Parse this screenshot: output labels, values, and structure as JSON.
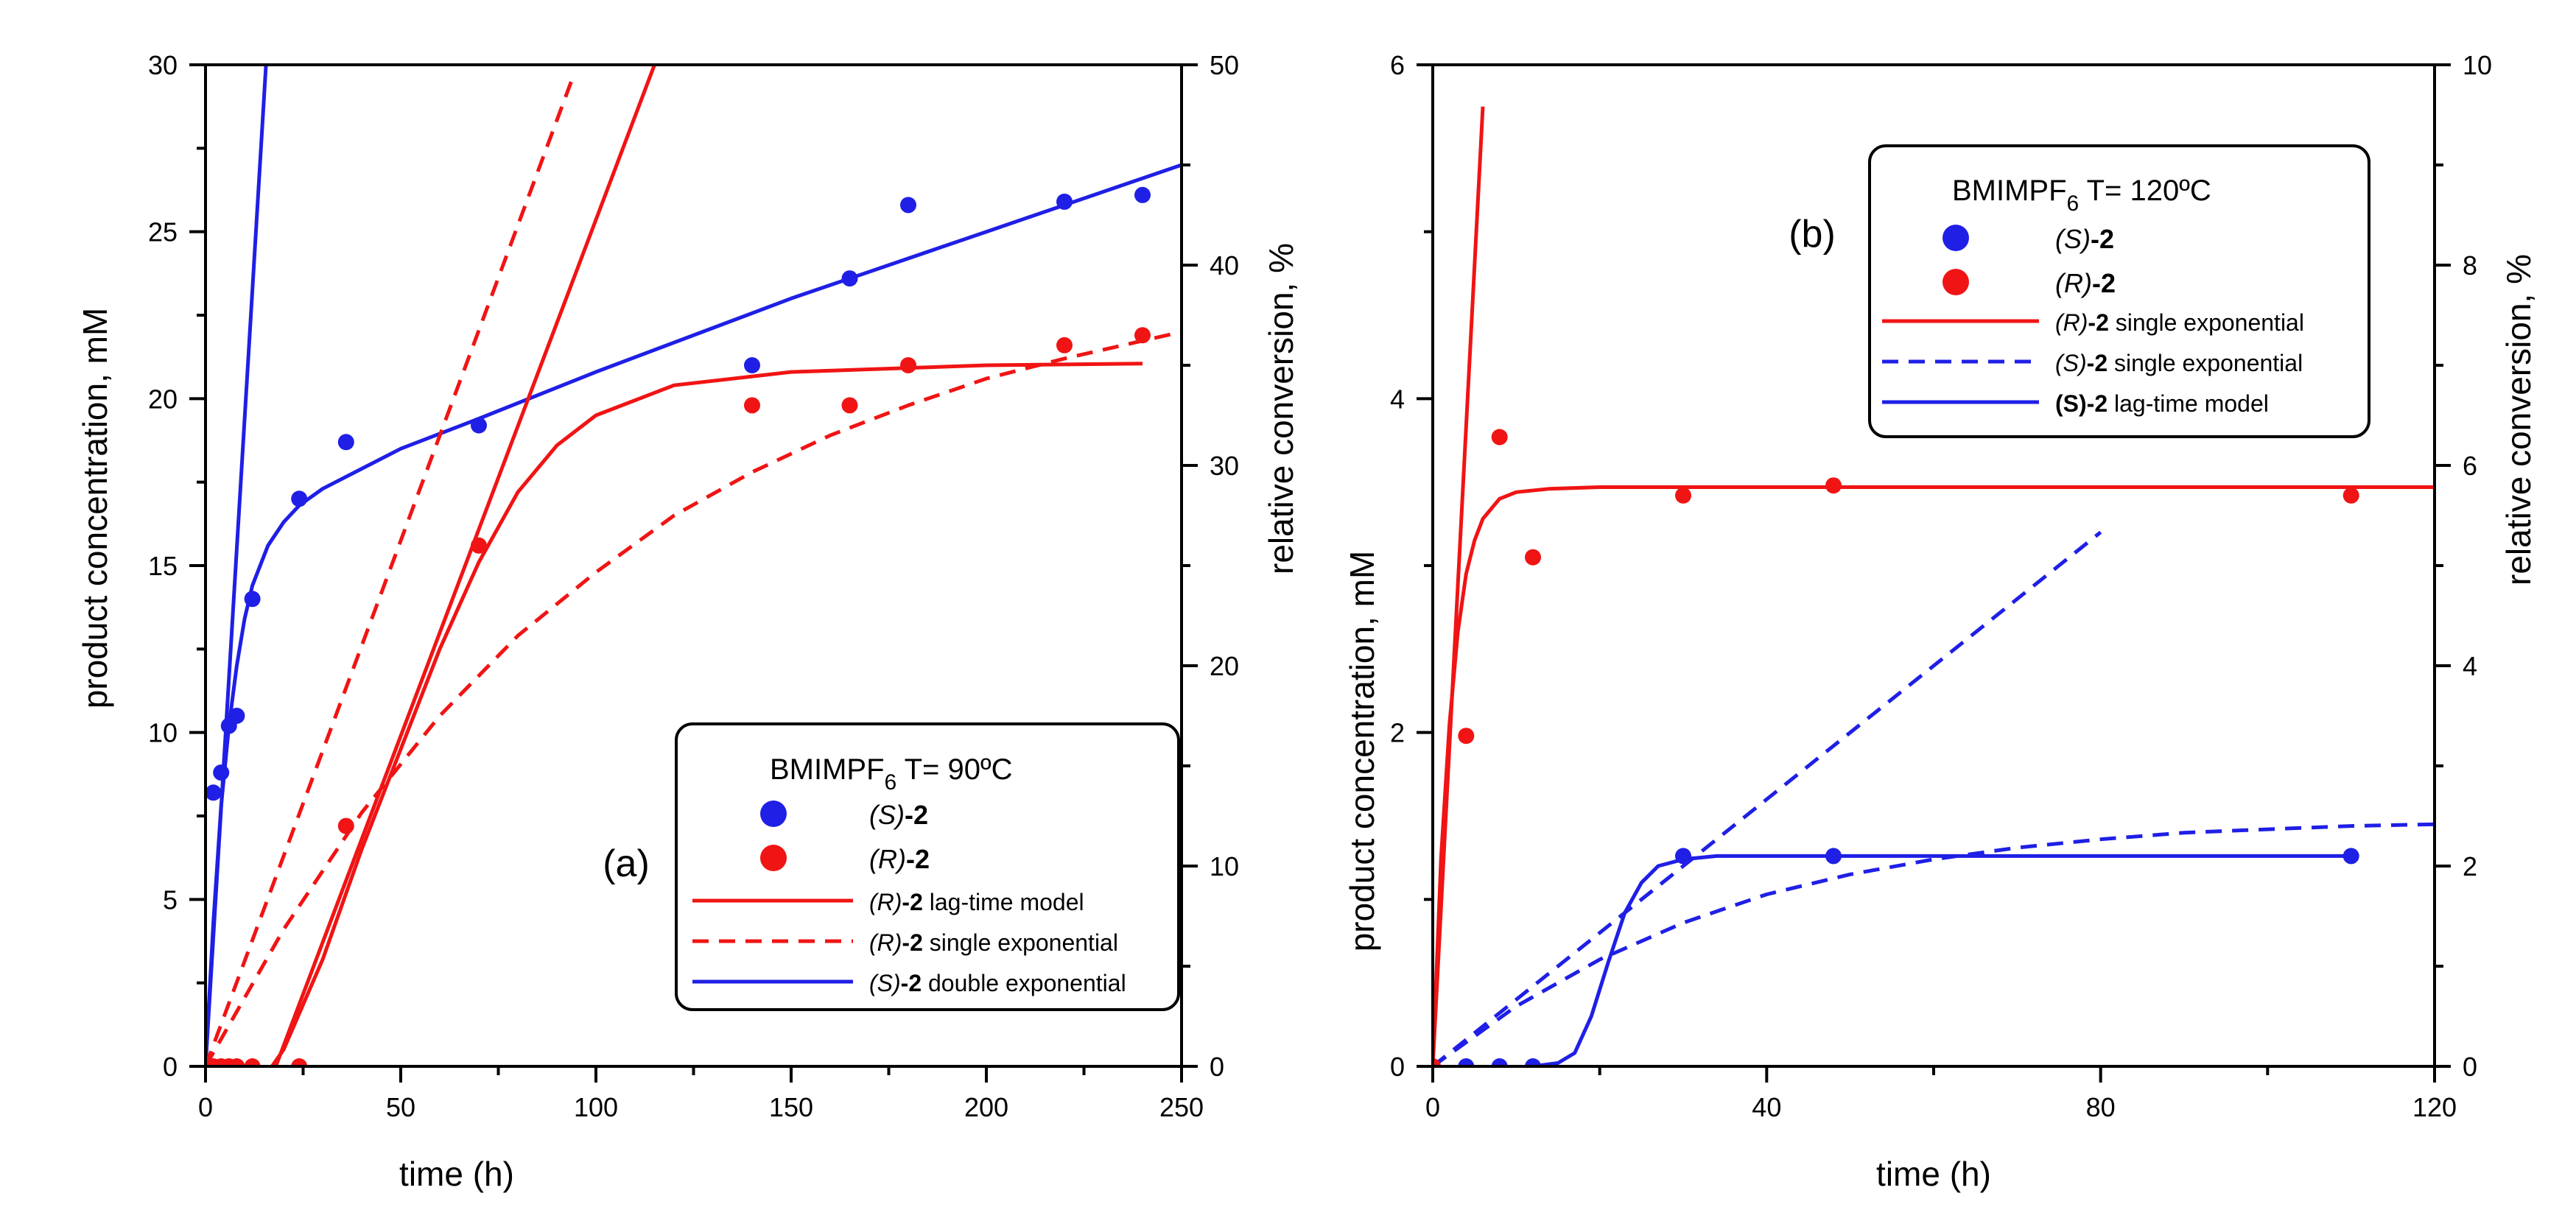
{
  "chart_data": [
    {
      "type": "scatter",
      "panel_label": "(a)",
      "legend_title": {
        "main": "BMIMPF",
        "sub": "6",
        "rest": " T= 90ºC"
      },
      "xlabel": "time (h)",
      "ylabel": "product concentration, mM",
      "y2label": "relative conversion, %",
      "xlim": [
        0,
        250
      ],
      "ylim": [
        0,
        30
      ],
      "y2lim": [
        0,
        50
      ],
      "xticks": [
        "0",
        "50",
        "100",
        "150",
        "200",
        "250"
      ],
      "yticks": [
        "0",
        "5",
        "10",
        "15",
        "20",
        "25",
        "30"
      ],
      "y2ticks": [
        "0",
        "10",
        "20",
        "30",
        "40",
        "50"
      ],
      "grid": false,
      "legend_position": "bottom-right",
      "legend": [
        {
          "italic": "(S)",
          "bold": "-2",
          "rest": "",
          "kind": "marker",
          "color": "#1f1fe6"
        },
        {
          "italic": "(R)",
          "bold": "-2",
          "rest": "",
          "kind": "marker",
          "color": "#f01414"
        },
        {
          "italic": "(R)",
          "bold": "-2",
          "rest": " lag-time model",
          "kind": "solid",
          "color": "#f01414"
        },
        {
          "italic": "(R)",
          "bold": "-2",
          "rest": " single exponential",
          "kind": "dashed",
          "color": "#f01414"
        },
        {
          "italic": "(S)",
          "bold": "-2",
          "rest": " double exponential",
          "kind": "solid",
          "color": "#1f1fe6"
        }
      ],
      "scatter_series": [
        {
          "name": "(S)-2",
          "color": "#1f1fe6",
          "points": [
            [
              0,
              0
            ],
            [
              2,
              8.2
            ],
            [
              4,
              8.8
            ],
            [
              6,
              10.2
            ],
            [
              8,
              10.5
            ],
            [
              12,
              14
            ],
            [
              24,
              17
            ],
            [
              36,
              18.7
            ],
            [
              70,
              19.2
            ],
            [
              140,
              21
            ],
            [
              165,
              23.6
            ],
            [
              180,
              25.8
            ],
            [
              220,
              25.9
            ],
            [
              240,
              26.1
            ]
          ]
        },
        {
          "name": "(R)-2",
          "color": "#f01414",
          "points": [
            [
              0,
              0
            ],
            [
              2,
              0
            ],
            [
              4,
              0
            ],
            [
              6,
              0
            ],
            [
              8,
              0
            ],
            [
              12,
              0
            ],
            [
              24,
              0
            ],
            [
              36,
              7.2
            ],
            [
              70,
              15.6
            ],
            [
              140,
              19.8
            ],
            [
              165,
              19.8
            ],
            [
              180,
              21
            ],
            [
              220,
              21.6
            ],
            [
              240,
              21.9
            ]
          ]
        }
      ],
      "line_series": [
        {
          "name": "(S)-2 double exponential",
          "color": "#1f1fe6",
          "dash": false,
          "points": [
            [
              0,
              0
            ],
            [
              2,
              4.3
            ],
            [
              4,
              7.8
            ],
            [
              6,
              10.2
            ],
            [
              8,
              12
            ],
            [
              10,
              13.4
            ],
            [
              12,
              14.4
            ],
            [
              16,
              15.6
            ],
            [
              20,
              16.3
            ],
            [
              24,
              16.8
            ],
            [
              30,
              17.3
            ],
            [
              40,
              17.9
            ],
            [
              50,
              18.5
            ],
            [
              70,
              19.4
            ],
            [
              100,
              20.8
            ],
            [
              150,
              23
            ],
            [
              200,
              25
            ],
            [
              250,
              27
            ]
          ]
        },
        {
          "name": "(S)-2 initial rate",
          "color": "#1f1fe6",
          "dash": false,
          "points": [
            [
              0,
              0
            ],
            [
              15.5,
              30
            ]
          ]
        },
        {
          "name": "(R)-2 lag-time model",
          "color": "#f01414",
          "dash": false,
          "points": [
            [
              17,
              0
            ],
            [
              20,
              0.5
            ],
            [
              30,
              3.2
            ],
            [
              40,
              6.5
            ],
            [
              50,
              9.5
            ],
            [
              60,
              12.5
            ],
            [
              70,
              15.1
            ],
            [
              80,
              17.2
            ],
            [
              90,
              18.6
            ],
            [
              100,
              19.5
            ],
            [
              120,
              20.4
            ],
            [
              150,
              20.8
            ],
            [
              200,
              21
            ],
            [
              240,
              21.05
            ]
          ]
        },
        {
          "name": "(R)-2 lag-time tangent",
          "color": "#f01414",
          "dash": false,
          "points": [
            [
              18,
              0
            ],
            [
              115,
              30
            ]
          ]
        },
        {
          "name": "(R)-2 single exponential",
          "color": "#f01414",
          "dash": true,
          "points": [
            [
              0,
              0
            ],
            [
              20,
              4.1
            ],
            [
              40,
              7.6
            ],
            [
              60,
              10.5
            ],
            [
              80,
              12.9
            ],
            [
              100,
              14.8
            ],
            [
              120,
              16.5
            ],
            [
              140,
              17.8
            ],
            [
              160,
              18.9
            ],
            [
              180,
              19.8
            ],
            [
              200,
              20.6
            ],
            [
              220,
              21.2
            ],
            [
              250,
              22
            ]
          ]
        },
        {
          "name": "(R)-2 single exponential initial rate",
          "color": "#f01414",
          "dash": true,
          "points": [
            [
              0,
              0
            ],
            [
              94,
              29.6
            ]
          ]
        }
      ]
    },
    {
      "type": "scatter",
      "panel_label": "(b)",
      "legend_title": {
        "main": "BMIMPF",
        "sub": "6",
        "rest": " T= 120ºC"
      },
      "xlabel": "time (h)",
      "ylabel": "product concentration, mM",
      "y2label": "relative conversion, %",
      "xlim": [
        0,
        120
      ],
      "ylim": [
        0,
        6
      ],
      "y2lim": [
        0,
        10
      ],
      "xticks": [
        "0",
        "40",
        "80",
        "120"
      ],
      "yticks": [
        "0",
        "2",
        "4",
        "6"
      ],
      "y2ticks": [
        "0",
        "2",
        "4",
        "6",
        "8",
        "10"
      ],
      "grid": false,
      "legend_position": "top-right",
      "legend": [
        {
          "italic": "(S)",
          "bold": "-2",
          "rest": "",
          "kind": "marker",
          "color": "#1f1fe6"
        },
        {
          "italic": "(R)",
          "bold": "-2",
          "rest": "",
          "kind": "marker",
          "color": "#f01414"
        },
        {
          "italic": "(R)",
          "bold": "-2",
          "rest": " single exponential",
          "kind": "solid",
          "color": "#f01414"
        },
        {
          "italic": "(S)",
          "bold": "-2",
          "rest": " single exponential",
          "kind": "dashed",
          "color": "#1f1fe6"
        },
        {
          "italic": "",
          "bold": "(S)-2",
          "rest": " lag-time model",
          "kind": "solid",
          "color": "#1f1fe6"
        }
      ],
      "scatter_series": [
        {
          "name": "(S)-2",
          "color": "#1f1fe6",
          "points": [
            [
              0,
              0
            ],
            [
              4,
              0
            ],
            [
              8,
              0
            ],
            [
              12,
              0
            ],
            [
              30,
              1.26
            ],
            [
              48,
              1.26
            ],
            [
              110,
              1.26
            ]
          ]
        },
        {
          "name": "(R)-2",
          "color": "#f01414",
          "points": [
            [
              0,
              0
            ],
            [
              4,
              1.98
            ],
            [
              8,
              3.77
            ],
            [
              12,
              3.05
            ],
            [
              30,
              3.42
            ],
            [
              48,
              3.48
            ],
            [
              110,
              3.42
            ]
          ]
        }
      ],
      "line_series": [
        {
          "name": "(R)-2 single exponential",
          "color": "#f01414",
          "dash": false,
          "points": [
            [
              0,
              0
            ],
            [
              1,
              1.25
            ],
            [
              2,
              2.05
            ],
            [
              3,
              2.6
            ],
            [
              4,
              2.95
            ],
            [
              5,
              3.15
            ],
            [
              6,
              3.28
            ],
            [
              8,
              3.4
            ],
            [
              10,
              3.44
            ],
            [
              14,
              3.46
            ],
            [
              20,
              3.47
            ],
            [
              120,
              3.47
            ]
          ]
        },
        {
          "name": "(R)-2 initial rate",
          "color": "#f01414",
          "dash": false,
          "points": [
            [
              0,
              0
            ],
            [
              6,
              5.75
            ]
          ]
        },
        {
          "name": "(S)-2 single exponential",
          "color": "#1f1fe6",
          "dash": true,
          "points": [
            [
              0,
              0
            ],
            [
              10,
              0.36
            ],
            [
              20,
              0.64
            ],
            [
              30,
              0.86
            ],
            [
              40,
              1.03
            ],
            [
              50,
              1.15
            ],
            [
              60,
              1.24
            ],
            [
              70,
              1.31
            ],
            [
              80,
              1.36
            ],
            [
              90,
              1.4
            ],
            [
              100,
              1.42
            ],
            [
              110,
              1.44
            ],
            [
              120,
              1.45
            ]
          ]
        },
        {
          "name": "(S)-2 single exponential initial rate",
          "color": "#1f1fe6",
          "dash": true,
          "points": [
            [
              0,
              0
            ],
            [
              80,
              3.2
            ]
          ]
        },
        {
          "name": "(S)-2 lag-time model",
          "color": "#1f1fe6",
          "dash": false,
          "points": [
            [
              12,
              0
            ],
            [
              15,
              0.02
            ],
            [
              17,
              0.08
            ],
            [
              19,
              0.3
            ],
            [
              21,
              0.62
            ],
            [
              23,
              0.92
            ],
            [
              25,
              1.1
            ],
            [
              27,
              1.2
            ],
            [
              30,
              1.24
            ],
            [
              34,
              1.26
            ],
            [
              60,
              1.26
            ],
            [
              110,
              1.26
            ]
          ]
        }
      ]
    }
  ]
}
